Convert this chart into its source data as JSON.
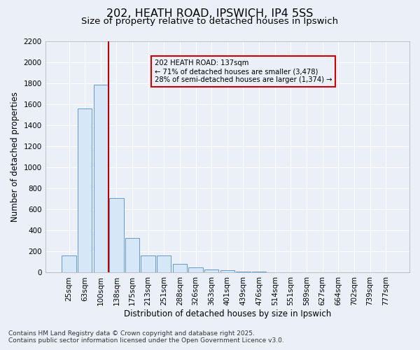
{
  "title1": "202, HEATH ROAD, IPSWICH, IP4 5SS",
  "title2": "Size of property relative to detached houses in Ipswich",
  "xlabel": "Distribution of detached houses by size in Ipswich",
  "ylabel": "Number of detached properties",
  "categories": [
    "25sqm",
    "63sqm",
    "100sqm",
    "138sqm",
    "175sqm",
    "213sqm",
    "251sqm",
    "288sqm",
    "326sqm",
    "363sqm",
    "401sqm",
    "439sqm",
    "476sqm",
    "514sqm",
    "551sqm",
    "589sqm",
    "627sqm",
    "664sqm",
    "702sqm",
    "739sqm",
    "777sqm"
  ],
  "values": [
    160,
    1560,
    1790,
    710,
    330,
    160,
    160,
    80,
    50,
    30,
    25,
    10,
    8,
    6,
    4,
    3,
    2,
    1,
    1,
    1,
    1
  ],
  "bar_color": "#d6e8f7",
  "bar_edge_color": "#6699cc",
  "bar_edge_width": 0.7,
  "vline_x": 2.5,
  "vline_color": "#bb0000",
  "annotation_text": "202 HEATH ROAD: 137sqm\n← 71% of detached houses are smaller (3,478)\n28% of semi-detached houses are larger (1,374) →",
  "annotation_box_color": "#cc0000",
  "ylim": [
    0,
    2200
  ],
  "yticks": [
    0,
    200,
    400,
    600,
    800,
    1000,
    1200,
    1400,
    1600,
    1800,
    2000,
    2200
  ],
  "bg_color": "#eaeff8",
  "grid_color": "#ffffff",
  "footer1": "Contains HM Land Registry data © Crown copyright and database right 2025.",
  "footer2": "Contains public sector information licensed under the Open Government Licence v3.0.",
  "title_fontsize": 11.5,
  "subtitle_fontsize": 9.5,
  "axis_label_fontsize": 8.5,
  "tick_fontsize": 7.5,
  "footer_fontsize": 6.5
}
